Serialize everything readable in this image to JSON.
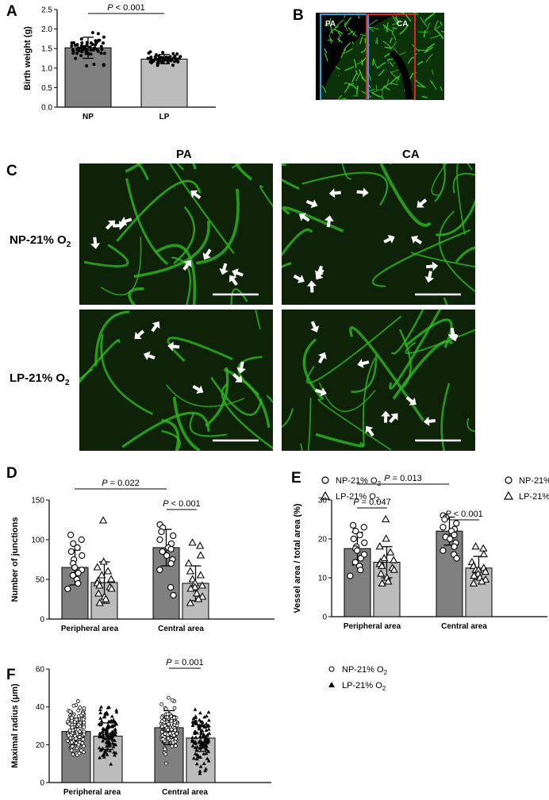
{
  "panels": {
    "a": "A",
    "b": "B",
    "c": "C",
    "d": "D",
    "e": "E",
    "f": "F"
  },
  "image_b": {
    "left_label": "PA",
    "right_label": "CA"
  },
  "image_c": {
    "col_labels": [
      "PA",
      "CA"
    ],
    "row_labels": [
      "NP-21% O",
      "LP-21% O"
    ],
    "row_subscript": "2"
  },
  "colors": {
    "np_bar": "#808080",
    "lp_bar": "#bcbcbc",
    "vessel": "#3fdc2a",
    "bg_micro": "#0e2208",
    "box_pa": "#2aa7e0",
    "box_ca": "#e0242a"
  },
  "chart_data": [
    {
      "id": "A",
      "type": "bar",
      "ylabel": "Birth weight (g)",
      "categories": [
        "NP",
        "LP"
      ],
      "values": [
        1.52,
        1.23
      ],
      "errors": [
        0.27,
        0.12
      ],
      "ylim": [
        0,
        2.5
      ],
      "yticks": [
        0.0,
        0.5,
        1.0,
        1.5,
        2.0,
        2.5
      ],
      "ytick_labels": [
        "0.0",
        "0.5",
        "1.0",
        "1.5",
        "2.0",
        "2.5"
      ],
      "annotations": [
        {
          "text": "P < 0.001",
          "between": [
            0,
            1
          ]
        }
      ]
    },
    {
      "id": "D",
      "type": "bar",
      "ylabel": "Number of junctions",
      "categories": [
        "Peripheral area",
        "Central area"
      ],
      "series": [
        {
          "name": "NP-21% O",
          "sub": "2",
          "values": [
            65,
            90
          ],
          "errors": [
            22,
            23
          ],
          "points": [
            [
              106,
              100,
              95,
              90,
              85,
              80,
              75,
              70,
              65,
              62,
              58,
              55,
              50,
              45,
              38
            ],
            [
              119,
              115,
              110,
              105,
              100,
              95,
              90,
              88,
              85,
              80,
              75,
              70,
              62,
              40,
              30
            ]
          ]
        },
        {
          "name": "LP-21% O",
          "sub": "2",
          "values": [
            46,
            45
          ],
          "errors": [
            26,
            22
          ],
          "points": [
            [
              124,
              72,
              65,
              60,
              55,
              50,
              48,
              45,
              42,
              40,
              38,
              32,
              28,
              25,
              20
            ],
            [
              96,
              92,
              80,
              70,
              60,
              55,
              50,
              45,
              42,
              40,
              38,
              32,
              28,
              25,
              20
            ]
          ]
        }
      ],
      "ylim": [
        0,
        150
      ],
      "yticks": [
        0,
        50,
        100,
        150
      ],
      "ytick_labels": [
        "0",
        "50",
        "100",
        "150"
      ],
      "annotations": [
        {
          "text": "P = 0.022",
          "between": [
            "Peripheral area",
            "Central area"
          ]
        },
        {
          "text": "P < 0.001",
          "within": "Central area"
        }
      ]
    },
    {
      "id": "E",
      "type": "bar",
      "ylabel": "Vessel area / total area (%)",
      "categories": [
        "Peripheral area",
        "Central area"
      ],
      "series": [
        {
          "name": "NP-21% O",
          "sub": "2",
          "values": [
            17.5,
            22.0
          ],
          "errors": [
            4.2,
            3.6
          ],
          "points": [
            [
              23.5,
              23,
              22,
              21,
              20,
              19,
              18,
              17.5,
              17,
              16,
              15,
              14,
              13,
              12,
              10.5
            ],
            [
              26,
              25.5,
              25,
              24,
              23,
              22.5,
              22,
              21,
              20.5,
              20,
              19,
              18,
              17,
              16,
              15
            ]
          ]
        },
        {
          "name": "LP-21% O",
          "sub": "2",
          "values": [
            14.0,
            12.5
          ],
          "errors": [
            4.0,
            3.0
          ],
          "points": [
            [
              25,
              20,
              18,
              16.5,
              15,
              14.5,
              14,
              13.5,
              13,
              12.5,
              12,
              11,
              10,
              9,
              8.5
            ],
            [
              18,
              17.5,
              16,
              14,
              13,
              12.5,
              12,
              12,
              11.5,
              11,
              10.5,
              10,
              9.5,
              9,
              8.5
            ]
          ]
        }
      ],
      "ylim": [
        0,
        30
      ],
      "yticks": [
        0,
        10,
        20,
        30
      ],
      "ytick_labels": [
        "0",
        "10",
        "20",
        "30"
      ],
      "annotations": [
        {
          "text": "P = 0.013",
          "between": [
            "Peripheral area",
            "Central area"
          ]
        },
        {
          "text": "P = 0.047",
          "within": "Peripheral area"
        },
        {
          "text": "P < 0.001",
          "within": "Central area"
        }
      ]
    },
    {
      "id": "F",
      "type": "bar",
      "ylabel": "Maximal radius (μm)",
      "categories": [
        "Peripheral area",
        "Central area"
      ],
      "series": [
        {
          "name": "NP-21% O",
          "sub": "2",
          "values": [
            27.0,
            29.0
          ],
          "errors": [
            7.0,
            9.0
          ]
        },
        {
          "name": "LP-21% O",
          "sub": "2",
          "values": [
            24.5,
            23.5
          ],
          "errors": [
            7.0,
            7.0
          ]
        }
      ],
      "ylim": [
        0,
        60
      ],
      "yticks": [
        0,
        20,
        40,
        60
      ],
      "ytick_labels": [
        "0",
        "20",
        "40",
        "60"
      ],
      "annotations": [
        {
          "text": "P = 0.001",
          "within": "Central area"
        }
      ]
    }
  ]
}
